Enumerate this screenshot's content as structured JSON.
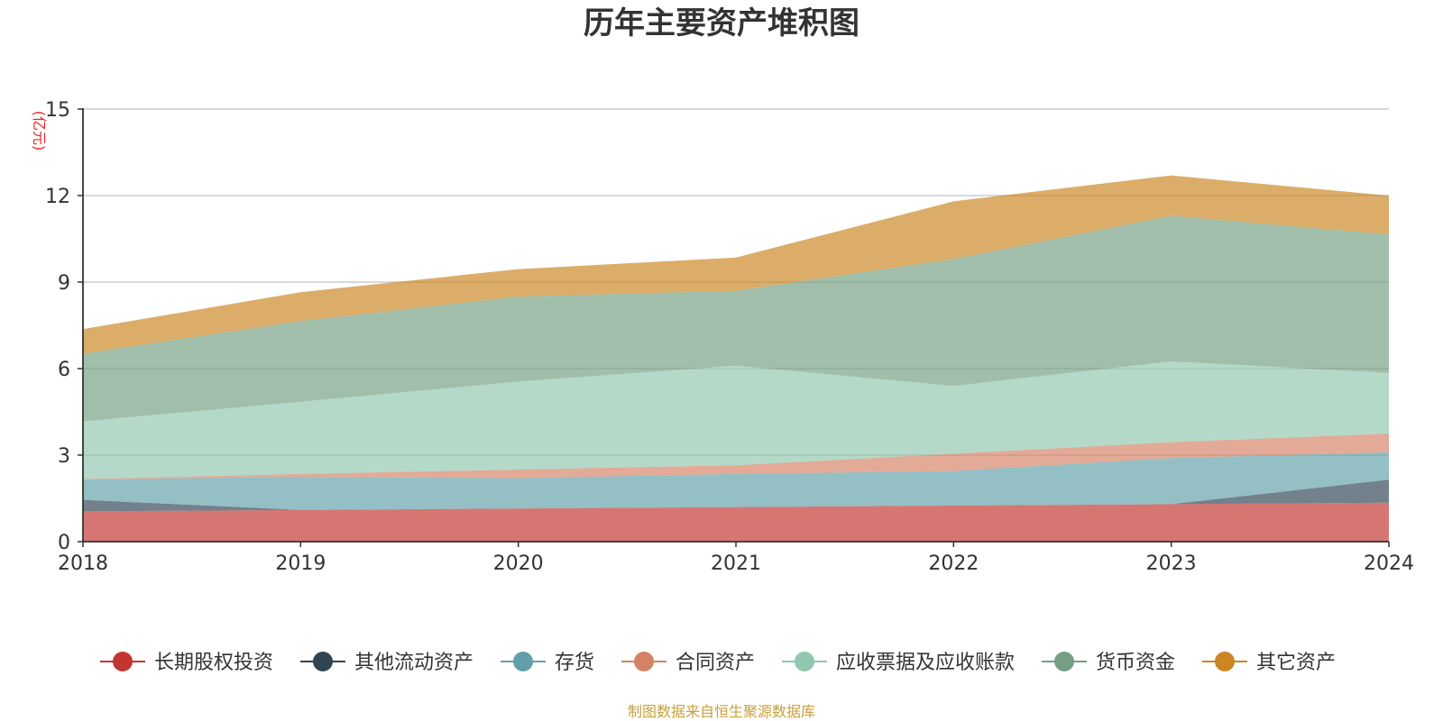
{
  "chart_data": {
    "type": "area",
    "stacked": true,
    "title": "历年主要资产堆积图",
    "ylabel": "(亿元)",
    "ylabel_color": "#e8262a",
    "categories": [
      "2018",
      "2019",
      "2020",
      "2021",
      "2022",
      "2023",
      "2024"
    ],
    "ylim": [
      0,
      15
    ],
    "yticks": [
      0,
      3,
      6,
      9,
      12,
      15
    ],
    "series": [
      {
        "name": "长期股权投资",
        "color": "#c23531",
        "values": [
          1.05,
          1.1,
          1.15,
          1.2,
          1.25,
          1.3,
          1.35
        ]
      },
      {
        "name": "其他流动资产",
        "color": "#2f4554",
        "values": [
          0.4,
          0.0,
          0.0,
          0.0,
          0.0,
          0.0,
          0.8
        ]
      },
      {
        "name": "存货",
        "color": "#61a0a8",
        "values": [
          0.7,
          1.15,
          1.05,
          1.15,
          1.2,
          1.6,
          0.95
        ]
      },
      {
        "name": "合同资产",
        "color": "#d48265",
        "values": [
          0.02,
          0.1,
          0.3,
          0.3,
          0.6,
          0.55,
          0.65
        ]
      },
      {
        "name": "应收票据及应收账款",
        "color": "#91c7ae",
        "values": [
          2.0,
          2.5,
          3.05,
          3.45,
          2.35,
          2.8,
          2.1
        ]
      },
      {
        "name": "货币资金",
        "color": "#749f83",
        "values": [
          2.35,
          2.8,
          2.95,
          2.6,
          4.4,
          5.05,
          4.8
        ]
      },
      {
        "name": "其它资产",
        "color": "#ca8622",
        "values": [
          0.85,
          1.0,
          0.95,
          1.15,
          2.0,
          1.4,
          1.35
        ]
      }
    ],
    "grid": true,
    "legend_position": "bottom"
  },
  "source_text": "制图数据来自恒生聚源数据库",
  "source_color": "#c8a03c"
}
